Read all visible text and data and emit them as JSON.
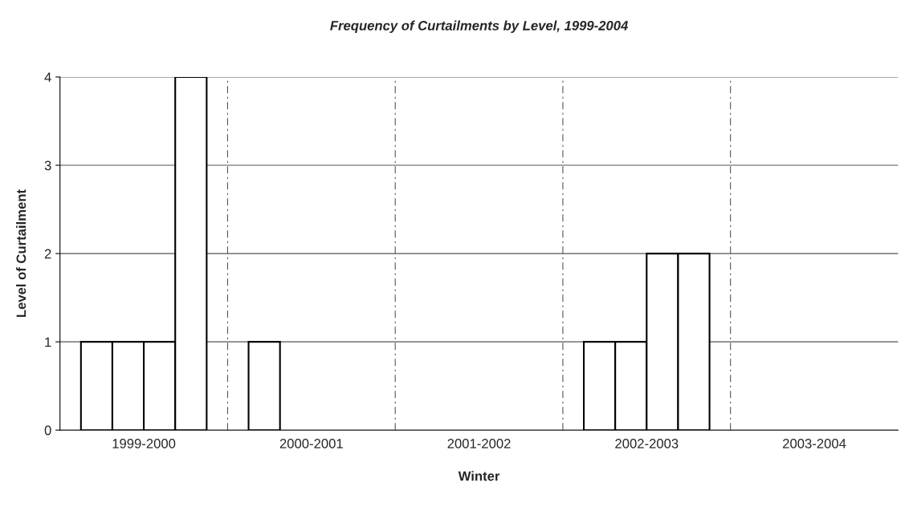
{
  "chart_data": {
    "type": "bar",
    "title": "Frequency of Curtailments by Level, 1999-2004",
    "xlabel": "Winter",
    "ylabel": "Level of Curtailment",
    "categories": [
      "1999-2000",
      "2000-2001",
      "2001-2002",
      "2002-2003",
      "2003-2004"
    ],
    "series": [
      {
        "color": "#ffffff",
        "values": [
          1,
          1,
          null,
          1,
          null
        ]
      },
      {
        "color": "#ffffff",
        "values": [
          1,
          null,
          null,
          1,
          null
        ]
      },
      {
        "color": "#ffffff",
        "values": [
          1,
          null,
          null,
          2,
          null
        ]
      },
      {
        "color": "#ffffff",
        "values": [
          4,
          null,
          null,
          2,
          null
        ]
      }
    ],
    "ylim": [
      0,
      4
    ],
    "yticks": [
      0,
      1,
      2,
      3,
      4
    ],
    "grid": true,
    "legend": false
  }
}
